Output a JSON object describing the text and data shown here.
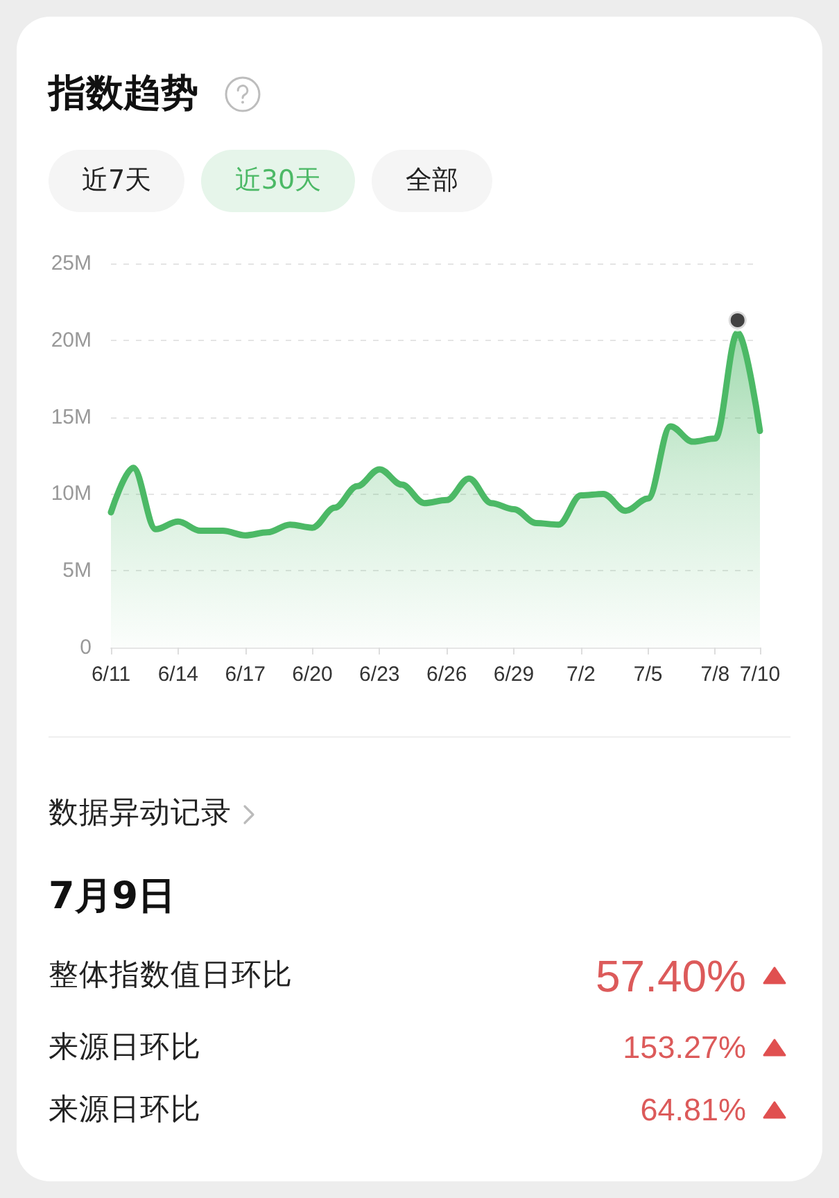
{
  "chart_data": [
    {
      "type": "area",
      "title": "指数趋势",
      "annotations": [
        "近7天",
        "近30天",
        "全部"
      ],
      "categories": [
        "6/11",
        null,
        null,
        "6/14",
        null,
        null,
        "6/17",
        null,
        null,
        "6/20",
        null,
        null,
        "6/23",
        null,
        null,
        "6/26",
        null,
        null,
        "6/29",
        null,
        null,
        "7/2",
        null,
        null,
        "7/5",
        null,
        null,
        "7/8",
        null,
        "7/10"
      ],
      "series": [
        {
          "color": "#4cb966",
          "values": [
            8.8,
            11.7,
            7.7,
            8.2,
            7.6,
            7.6,
            7.3,
            7.5,
            8.0,
            7.8,
            9.1,
            10.5,
            11.6,
            10.6,
            9.4,
            9.6,
            11.0,
            9.4,
            9.0,
            8.1,
            8.0,
            9.9,
            10.0,
            8.9,
            9.7,
            14.4,
            13.4,
            13.6,
            20.5,
            14.1
          ]
        },
        {
          "type": "scatter",
          "marker": "circle",
          "color": "#111111",
          "values": [
            null,
            null,
            null,
            null,
            null,
            null,
            null,
            null,
            null,
            null,
            null,
            null,
            null,
            null,
            null,
            null,
            null,
            null,
            null,
            null,
            null,
            null,
            null,
            null,
            null,
            null,
            null,
            null,
            21.3,
            null
          ]
        }
      ],
      "ylim": [
        0,
        25
      ],
      "yticks": [
        0,
        {
          "value": 5,
          "label": "5M"
        },
        {
          "value": 10,
          "label": "10M"
        },
        {
          "value": 15,
          "label": "15M"
        },
        {
          "value": 20,
          "label": "20M"
        },
        {
          "value": 25,
          "label": "25M"
        }
      ],
      "grid": "y",
      "marker": "none"
    },
    {
      "type": "other",
      "title": "数据异动记录",
      "subtitle": "7月9日",
      "annotations": [
        "整体指数值日环比",
        "57.40%",
        "来源日环比",
        "153.27%",
        "来源日环比",
        "64.81%"
      ]
    }
  ]
}
